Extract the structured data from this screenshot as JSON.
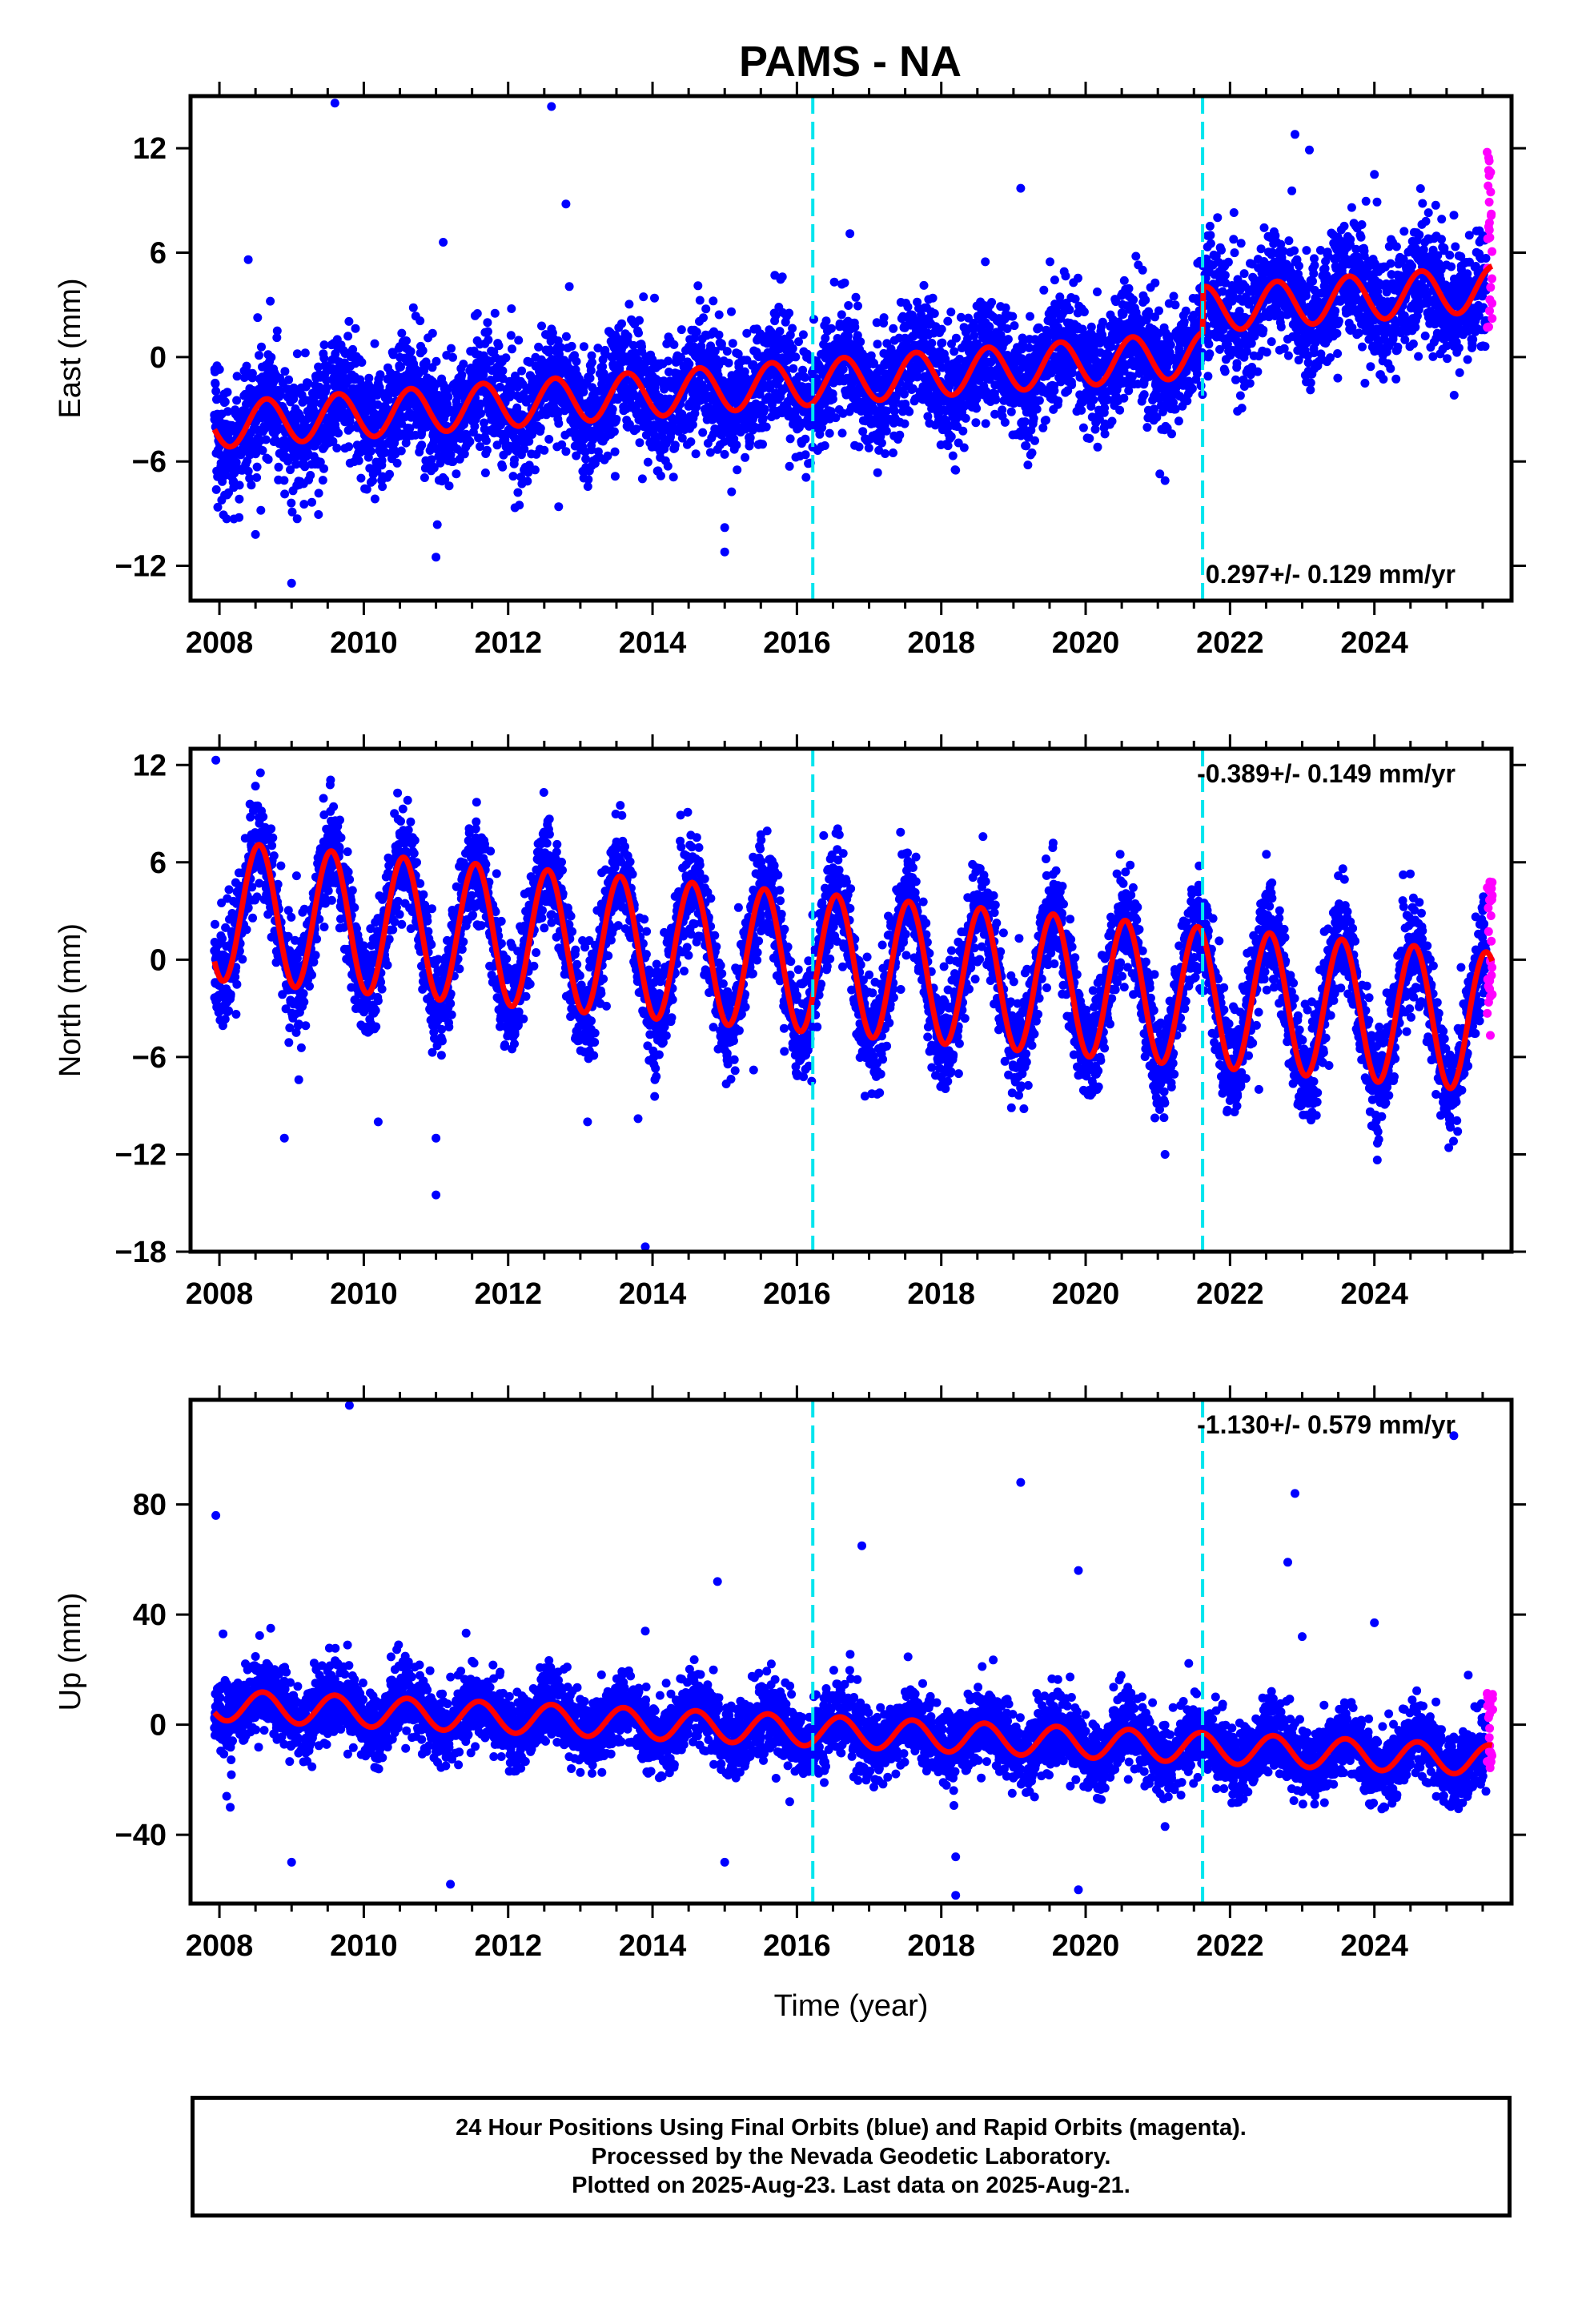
{
  "title": "PAMS - NA",
  "footer": {
    "line1": "24 Hour Positions Using Final Orbits (blue) and Rapid Orbits (magenta).",
    "line2": "Processed by the Nevada Geodetic Laboratory.",
    "line3": "Plotted on 2025-Aug-23. Last data on 2025-Aug-21."
  },
  "colors": {
    "final_orbits": "#0000ff",
    "rapid_orbits": "#ff00ff",
    "model_fit": "#ff0000",
    "equipment_change": "#00e5ee"
  },
  "chart_data": [
    {
      "type": "scatter",
      "ylabel": "East (mm)",
      "xlabel": "",
      "xlim": [
        2007.6,
        2025.9
      ],
      "ylim": [
        -14,
        15
      ],
      "xticks": [
        2008,
        2010,
        2012,
        2014,
        2016,
        2018,
        2020,
        2022,
        2024
      ],
      "xtick_labels": [
        "2008",
        "2010",
        "2012",
        "2014",
        "2016",
        "2018",
        "2020",
        "2022",
        "2024"
      ],
      "yticks": [
        -12,
        -6,
        0,
        6,
        12
      ],
      "ytick_labels": [
        "−12",
        "−6",
        "0",
        "6",
        "12"
      ],
      "rate_label": "0.297+/- 0.129 mm/yr",
      "rate_position": "bottom-right",
      "vlines": [
        2016.22,
        2021.62
      ],
      "model": {
        "intercept_2008": -3.9,
        "rate": 0.297,
        "annual_amp": 1.3,
        "peak_phase": 0.65,
        "steps": [
          {
            "t": 2021.62,
            "dy": 2.6
          }
        ]
      },
      "scatter_sd": 1.7,
      "outliers": [
        [
          2009.6,
          14.6
        ],
        [
          2012.6,
          14.4
        ],
        [
          2012.8,
          8.8
        ],
        [
          2011.1,
          6.6
        ],
        [
          2008.4,
          5.6
        ],
        [
          2019.1,
          9.7
        ],
        [
          2022.9,
          12.8
        ],
        [
          2023.1,
          11.9
        ],
        [
          2024.0,
          10.5
        ],
        [
          2009.0,
          -13.0
        ],
        [
          2011.0,
          -11.5
        ],
        [
          2015.0,
          -11.2
        ],
        [
          2015.0,
          -9.8
        ],
        [
          2012.7,
          -8.6
        ],
        [
          2008.5,
          -10.2
        ],
        [
          2008.1,
          -9.3
        ],
        [
          2018.2,
          -6.5
        ],
        [
          2019.2,
          -6.2
        ],
        [
          2021.1,
          -7.1
        ],
        [
          2010.1,
          -7.2
        ]
      ],
      "rapid_range": [
        1.5,
        11.8
      ]
    },
    {
      "type": "scatter",
      "ylabel": "North (mm)",
      "xlabel": "",
      "xlim": [
        2007.6,
        2025.9
      ],
      "ylim": [
        -18,
        13
      ],
      "xticks": [
        2008,
        2010,
        2012,
        2014,
        2016,
        2018,
        2020,
        2022,
        2024
      ],
      "xtick_labels": [
        "2008",
        "2010",
        "2012",
        "2014",
        "2016",
        "2018",
        "2020",
        "2022",
        "2024"
      ],
      "yticks": [
        -18,
        -12,
        -6,
        0,
        6,
        12
      ],
      "ytick_labels": [
        "−18",
        "−12",
        "−6",
        "0",
        "6",
        "12"
      ],
      "rate_label": "-0.389+/- 0.149 mm/yr",
      "rate_position": "top-right",
      "vlines": [
        2016.22,
        2021.62
      ],
      "model": {
        "intercept_2008": 3.0,
        "rate": -0.389,
        "annual_amp": 4.3,
        "peak_phase": 0.55,
        "steps": []
      },
      "scatter_sd": 1.6,
      "outliers": [
        [
          2007.95,
          12.3
        ],
        [
          2008.5,
          10.7
        ],
        [
          2008.9,
          -11.0
        ],
        [
          2009.1,
          -7.4
        ],
        [
          2010.2,
          -10.0
        ],
        [
          2011.0,
          -14.5
        ],
        [
          2011.0,
          -11.0
        ],
        [
          2013.1,
          -10.0
        ],
        [
          2013.8,
          -9.8
        ],
        [
          2013.9,
          -17.7
        ],
        [
          2015.4,
          -6.8
        ],
        [
          2021.1,
          -12.0
        ],
        [
          2021.8,
          -4.6
        ],
        [
          2024.0,
          -10.3
        ],
        [
          2025.1,
          -7.2
        ],
        [
          2022.4,
          -8.0
        ]
      ],
      "rapid_range": [
        -5.0,
        5.0
      ]
    },
    {
      "type": "scatter",
      "ylabel": "Up (mm)",
      "xlabel": "Time (year)",
      "xlim": [
        2007.6,
        2025.9
      ],
      "ylim": [
        -65,
        118
      ],
      "xticks": [
        2008,
        2010,
        2012,
        2014,
        2016,
        2018,
        2020,
        2022,
        2024
      ],
      "xtick_labels": [
        "2008",
        "2010",
        "2012",
        "2014",
        "2016",
        "2018",
        "2020",
        "2022",
        "2024"
      ],
      "yticks": [
        -40,
        0,
        40,
        80
      ],
      "ytick_labels": [
        "−40",
        "0",
        "40",
        "80"
      ],
      "rate_label": "-1.130+/- 0.579 mm/yr",
      "rate_position": "top-right",
      "vlines": [
        2016.22,
        2021.62
      ],
      "model": {
        "intercept_2008": 7.0,
        "rate": -1.13,
        "annual_amp": 5.5,
        "peak_phase": 0.6,
        "steps": []
      },
      "scatter_sd": 6.5,
      "outliers": [
        [
          2007.95,
          76
        ],
        [
          2009.8,
          116
        ],
        [
          2008.05,
          33
        ],
        [
          2008.1,
          -26
        ],
        [
          2008.15,
          -30
        ],
        [
          2009.0,
          -50
        ],
        [
          2011.2,
          -58
        ],
        [
          2013.9,
          34
        ],
        [
          2014.9,
          52
        ],
        [
          2015.0,
          -50
        ],
        [
          2015.9,
          -28
        ],
        [
          2016.9,
          65
        ],
        [
          2018.2,
          -48
        ],
        [
          2018.2,
          -62
        ],
        [
          2019.1,
          88
        ],
        [
          2019.9,
          56
        ],
        [
          2019.9,
          -60
        ],
        [
          2021.1,
          -37
        ],
        [
          2022.9,
          84
        ],
        [
          2022.8,
          59
        ],
        [
          2023.0,
          32
        ],
        [
          2024.0,
          37
        ],
        [
          2025.1,
          105
        ],
        [
          2025.3,
          18
        ]
      ],
      "rapid_range": [
        -18,
        12
      ]
    }
  ]
}
